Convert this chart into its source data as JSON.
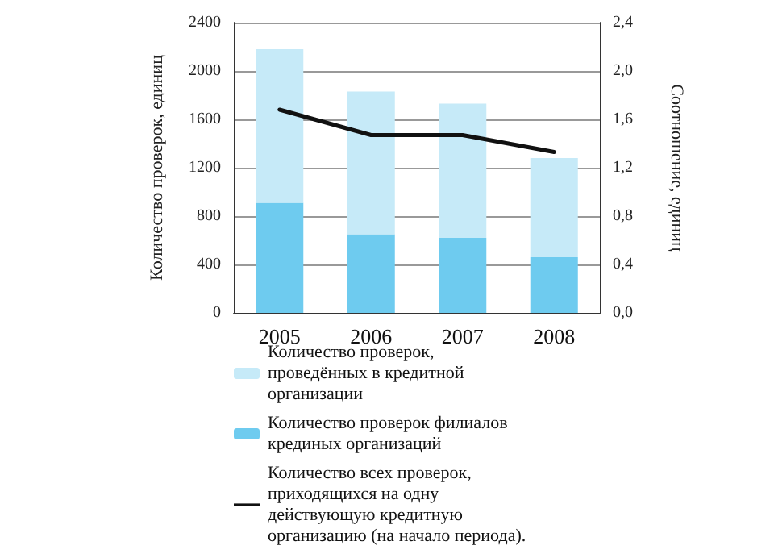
{
  "chart_data": {
    "type": "bar",
    "categories": [
      "2005",
      "2006",
      "2007",
      "2008"
    ],
    "ylabel": "Количество проверок, единиц",
    "y2label": "Соотношение, единиц",
    "ylim": [
      0,
      2400
    ],
    "yticks": [
      0,
      400,
      800,
      1200,
      1600,
      2000,
      2400
    ],
    "y2lim": [
      0,
      2.4
    ],
    "y2ticks": [
      {
        "value": 0,
        "label": "0,0"
      },
      {
        "value": 0.4,
        "label": "0,4"
      },
      {
        "value": 0.8,
        "label": "0,8"
      },
      {
        "value": 1.2,
        "label": "1,2"
      },
      {
        "value": 1.6,
        "label": "1,6"
      },
      {
        "value": 2.0,
        "label": "2,0"
      },
      {
        "value": 2.4,
        "label": "2,4"
      }
    ],
    "grid": "y",
    "legend": "bottom",
    "marker": "none",
    "stacked": true,
    "series": [
      {
        "name": "Количество проверок филиалов крединых организаций",
        "color": "#6ecbef",
        "values": [
          910,
          650,
          620,
          460
        ]
      },
      {
        "name": "Количество проверок, проведённых в кредитной организации",
        "color": "#c6eaf8",
        "values": [
          1270,
          1180,
          1110,
          820
        ]
      },
      {
        "name": "Количество всех проверок, приходящихся на одну действующую кредитную организацию (на начало периода).",
        "type": "line",
        "axis": "y2",
        "color": "#111111",
        "values": [
          1.68,
          1.47,
          1.47,
          1.33
        ]
      }
    ]
  }
}
